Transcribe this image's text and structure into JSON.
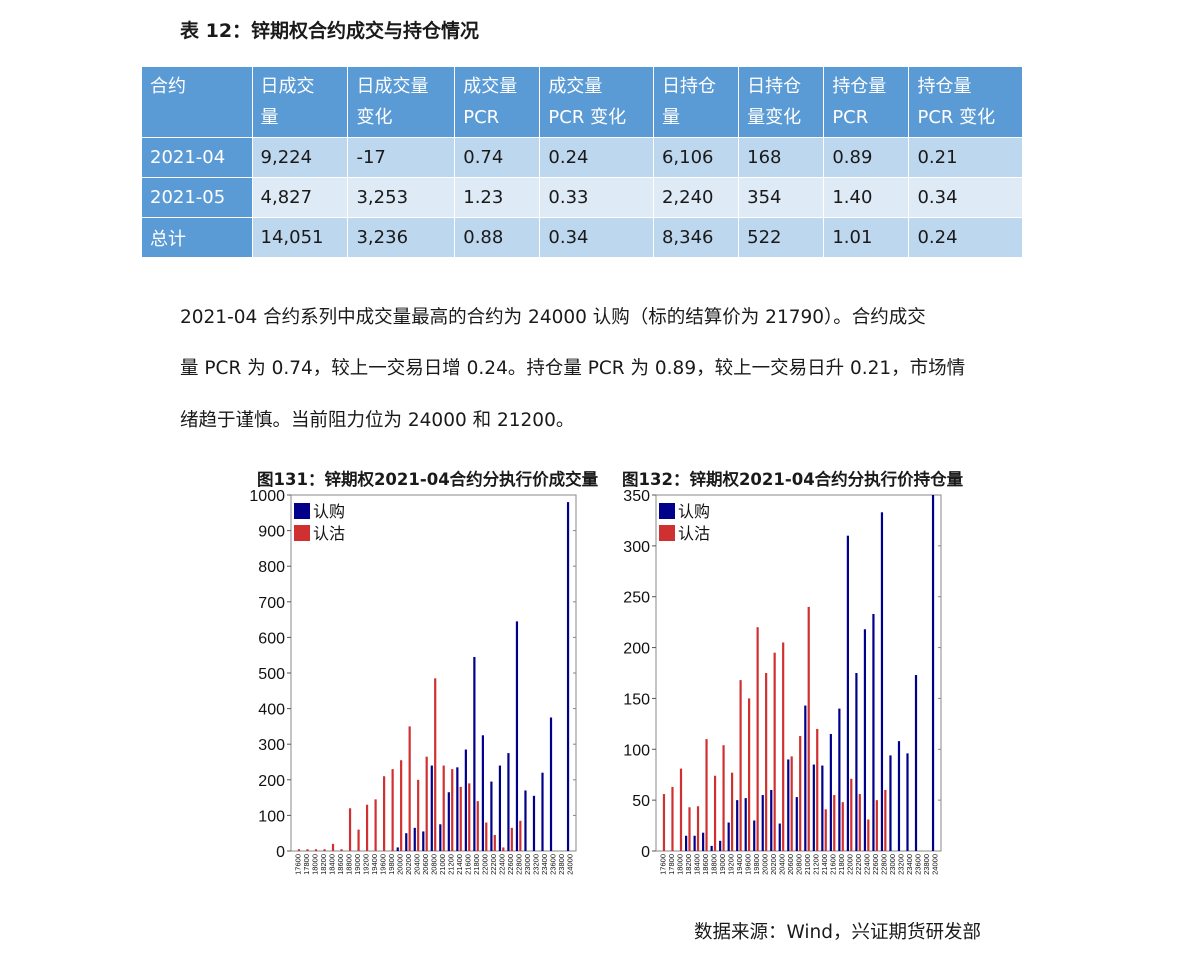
{
  "table": {
    "title": "表 12：锌期权合约成交与持仓情况",
    "headers": [
      [
        "合约"
      ],
      [
        "日成交",
        "量"
      ],
      [
        "日成交量",
        "变化"
      ],
      [
        "成交量",
        "PCR"
      ],
      [
        "成交量",
        "PCR 变化"
      ],
      [
        "日持仓",
        "量"
      ],
      [
        "日持仓",
        "量变化"
      ],
      [
        "持仓量",
        "PCR"
      ],
      [
        "持仓量",
        "PCR 变化"
      ]
    ],
    "rows": [
      [
        "2021-04",
        "9,224",
        "-17",
        "0.74",
        "0.24",
        "6,106",
        "168",
        "0.89",
        "0.21"
      ],
      [
        "2021-05",
        "4,827",
        "3,253",
        "1.23",
        "0.33",
        "2,240",
        "354",
        "1.40",
        "0.34"
      ],
      [
        "总计",
        "14,051",
        "3,236",
        "0.88",
        "0.34",
        "8,346",
        "522",
        "1.01",
        "0.24"
      ]
    ]
  },
  "paragraph": [
    "2021-04 合约系列中成交量最高的合约为 24000 认购（标的结算价为 21790）。合约成交",
    "量 PCR 为 0.74，较上一交易日增 0.24。持仓量 PCR 为 0.89，较上一交易日升 0.21，市场情",
    "绪趋于谨慎。当前阻力位为 24000 和 21200。"
  ],
  "chart_data": [
    {
      "type": "bar",
      "title": "图131：锌期权2021-04合约分执行价成交量",
      "categories": [
        "17600",
        "17800",
        "18000",
        "18200",
        "18400",
        "18600",
        "18800",
        "19000",
        "19200",
        "19400",
        "19600",
        "19800",
        "20000",
        "20200",
        "20400",
        "20600",
        "20800",
        "21000",
        "21200",
        "21400",
        "21600",
        "21800",
        "22000",
        "22200",
        "22400",
        "22600",
        "22800",
        "23000",
        "23200",
        "23400",
        "23600",
        "23800",
        "24000"
      ],
      "series": [
        {
          "name": "认购",
          "color": "#00008b",
          "values": [
            0,
            0,
            0,
            0,
            0,
            0,
            0,
            0,
            0,
            0,
            0,
            0,
            10,
            50,
            65,
            55,
            240,
            75,
            165,
            235,
            285,
            545,
            325,
            195,
            240,
            275,
            645,
            170,
            155,
            220,
            375,
            0,
            980
          ]
        },
        {
          "name": "认沽",
          "color": "#d03030",
          "values": [
            5,
            5,
            5,
            5,
            20,
            5,
            120,
            60,
            130,
            145,
            210,
            230,
            255,
            350,
            200,
            265,
            485,
            240,
            230,
            180,
            190,
            140,
            80,
            45,
            10,
            65,
            85,
            0,
            0,
            0,
            0,
            0,
            0
          ]
        }
      ],
      "ylim": [
        0,
        1000
      ],
      "yticks": [
        0,
        100,
        200,
        300,
        400,
        500,
        600,
        700,
        800,
        900,
        1000
      ],
      "legend": "top-left"
    },
    {
      "type": "bar",
      "title": "图132：锌期权2021-04合约分执行价持仓量",
      "categories": [
        "17600",
        "17800",
        "18000",
        "18200",
        "18400",
        "18600",
        "18800",
        "19000",
        "19200",
        "19400",
        "19600",
        "19800",
        "20000",
        "20200",
        "20400",
        "20600",
        "20800",
        "21000",
        "21200",
        "21400",
        "21600",
        "21800",
        "22000",
        "22200",
        "22400",
        "22600",
        "22800",
        "23000",
        "23200",
        "23400",
        "23600",
        "23800",
        "24000"
      ],
      "series": [
        {
          "name": "认购",
          "color": "#00008b",
          "values": [
            0,
            0,
            0,
            15,
            15,
            18,
            5,
            10,
            28,
            50,
            52,
            30,
            55,
            60,
            27,
            90,
            53,
            143,
            85,
            84,
            115,
            140,
            310,
            175,
            218,
            233,
            333,
            94,
            108,
            96,
            173,
            0,
            350
          ]
        },
        {
          "name": "认沽",
          "color": "#d03030",
          "values": [
            56,
            63,
            81,
            43,
            44,
            110,
            74,
            104,
            77,
            168,
            150,
            220,
            175,
            195,
            205,
            93,
            113,
            240,
            120,
            41,
            55,
            48,
            71,
            56,
            31,
            50,
            60,
            0,
            0,
            0,
            0,
            0,
            0
          ]
        }
      ],
      "ylim": [
        0,
        350
      ],
      "yticks": [
        0,
        50,
        100,
        150,
        200,
        250,
        300,
        350
      ],
      "legend": "top-left"
    }
  ],
  "source": "数据来源：Wind，兴证期货研发部"
}
